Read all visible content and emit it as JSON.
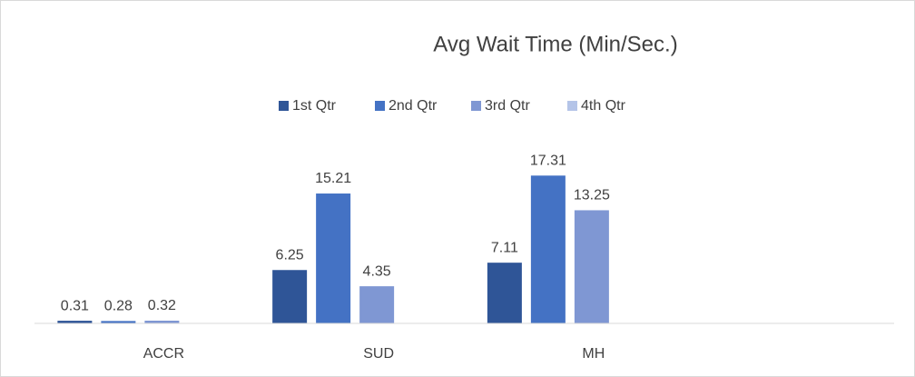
{
  "chart_data": {
    "type": "bar",
    "title": "Avg Wait Time (Min/Sec.)",
    "categories": [
      "ACCR",
      "SUD",
      "MH",
      null
    ],
    "series": [
      {
        "name": "1st Qtr",
        "color": "#2f5597",
        "values": [
          0.31,
          6.25,
          7.11,
          null
        ]
      },
      {
        "name": "2nd Qtr",
        "color": "#4472c4",
        "values": [
          0.28,
          15.21,
          17.31,
          null
        ]
      },
      {
        "name": "3rd Qtr",
        "color": "#7f97d3",
        "values": [
          0.32,
          4.35,
          13.25,
          null
        ]
      },
      {
        "name": "4th Qtr",
        "color": "#b4c4e8",
        "values": [
          null,
          null,
          null,
          null
        ]
      }
    ],
    "ylim": [
      0,
      20
    ],
    "legend": "top"
  }
}
